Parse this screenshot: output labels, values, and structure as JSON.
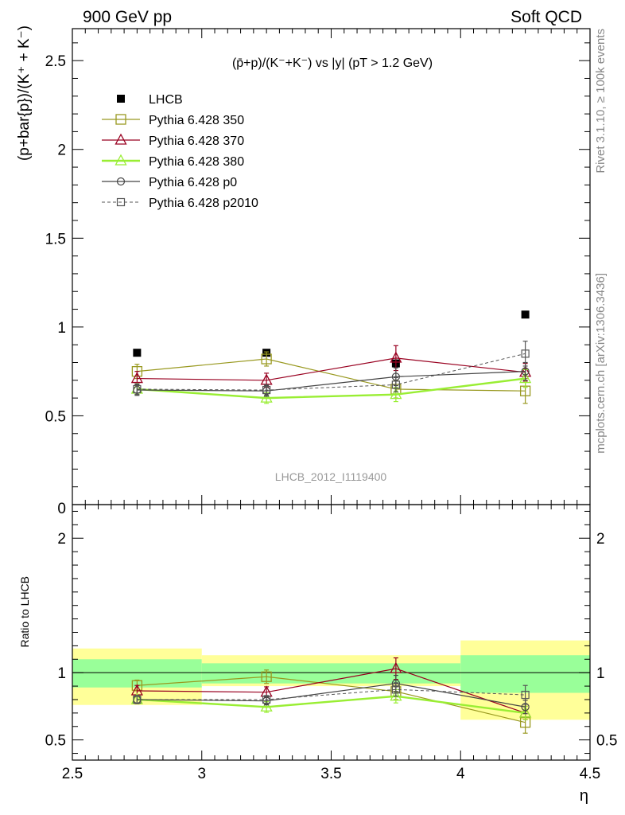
{
  "header": {
    "left": "900 GeV pp",
    "right": "Soft QCD"
  },
  "side_labels": {
    "rivet": "Rivet 3.1.10, ≥ 100k events",
    "source": "mcplots.cern.ch [arXiv:1306.3436]"
  },
  "chart_data": [
    {
      "type": "line",
      "panel": "main",
      "title": "(p̄+p)/(K⁻+K⁻) vs |y| (pT > 1.2 GeV)",
      "ylabel": "(p+bar{p})/(K⁺ + K⁻)",
      "analysis_label": "LHCB_2012_I1119400",
      "xlim": [
        2.5,
        4.5
      ],
      "ylim": [
        0,
        2.68
      ],
      "y_ticks": [
        0.5,
        1,
        1.5,
        2,
        2.5
      ],
      "y_tick_labels": [
        "0.5",
        "1",
        "1.5",
        "2",
        "2.5"
      ],
      "y_tick_partial_label": "0",
      "x": [
        2.75,
        3.25,
        3.75,
        4.25
      ],
      "legend_position": "top-left",
      "series": [
        {
          "name": "LHCB",
          "color": "#000000",
          "marker": "filled-square",
          "line": "none",
          "values": [
            0.855,
            0.855,
            0.795,
            1.07
          ],
          "err": [
            0,
            0,
            0,
            0
          ]
        },
        {
          "name": "Pythia 6.428 350",
          "color": "#999920",
          "marker": "open-square",
          "line": "solid",
          "values": [
            0.75,
            0.82,
            0.65,
            0.64
          ],
          "err": [
            0.04,
            0.04,
            0.05,
            0.07
          ]
        },
        {
          "name": "Pythia 6.428 370",
          "color": "#990020",
          "marker": "open-triangle",
          "line": "solid",
          "values": [
            0.71,
            0.7,
            0.825,
            0.745
          ],
          "err": [
            0.04,
            0.04,
            0.07,
            0.05
          ]
        },
        {
          "name": "Pythia 6.428 380",
          "color": "#99ee33",
          "marker": "open-triangle",
          "line": "solid-thick",
          "values": [
            0.65,
            0.6,
            0.62,
            0.71
          ],
          "err": [
            0.03,
            0.03,
            0.04,
            0.05
          ]
        },
        {
          "name": "Pythia 6.428 p0",
          "color": "#444444",
          "marker": "open-circle",
          "line": "solid",
          "values": [
            0.645,
            0.64,
            0.72,
            0.75
          ],
          "err": [
            0.03,
            0.03,
            0.05,
            0.05
          ]
        },
        {
          "name": "Pythia 6.428 p2010",
          "color": "#555555",
          "marker": "open-square-small",
          "line": "dashed",
          "values": [
            0.65,
            0.645,
            0.675,
            0.85
          ],
          "err": [
            0.03,
            0.03,
            0.04,
            0.07
          ]
        }
      ]
    },
    {
      "type": "line",
      "panel": "ratio",
      "ylabel": "Ratio to LHCB",
      "xlabel": "η",
      "xlim": [
        2.5,
        4.5
      ],
      "ylim": [
        0.35,
        2.25
      ],
      "x_ticks": [
        2.5,
        3,
        3.5,
        4,
        4.5
      ],
      "x_tick_labels": [
        "2.5",
        "3",
        "3.5",
        "4",
        "4.5"
      ],
      "y_ticks": [
        0.5,
        1,
        2
      ],
      "y_tick_labels": [
        "0.5",
        "1",
        "2"
      ],
      "reference_line": 1,
      "x": [
        2.75,
        3.25,
        3.75,
        4.25
      ],
      "bands": [
        {
          "x0": 2.5,
          "x1": 3.0,
          "y1_lo": 0.89,
          "y1_hi": 1.1,
          "y2_lo": 0.76,
          "y2_hi": 1.18
        },
        {
          "x0": 3.0,
          "x1": 4.0,
          "y1_lo": 0.92,
          "y1_hi": 1.07,
          "y2_lo": 0.9,
          "y2_hi": 1.13
        },
        {
          "x0": 4.0,
          "x1": 4.5,
          "y1_lo": 0.85,
          "y1_hi": 1.13,
          "y2_lo": 0.65,
          "y2_hi": 1.24
        }
      ],
      "series": [
        {
          "name": "Pythia 6.428 350",
          "values": [
            0.905,
            0.97,
            0.86,
            0.63
          ],
          "err": [
            0.04,
            0.05,
            0.06,
            0.08
          ]
        },
        {
          "name": "Pythia 6.428 370",
          "values": [
            0.865,
            0.855,
            1.03,
            0.7
          ],
          "err": [
            0.04,
            0.04,
            0.08,
            0.05
          ]
        },
        {
          "name": "Pythia 6.428 380",
          "values": [
            0.8,
            0.745,
            0.825,
            0.7
          ],
          "err": [
            0.03,
            0.04,
            0.05,
            0.05
          ]
        },
        {
          "name": "Pythia 6.428 p0",
          "values": [
            0.8,
            0.79,
            0.92,
            0.745
          ],
          "err": [
            0.03,
            0.03,
            0.06,
            0.05
          ]
        },
        {
          "name": "Pythia 6.428 p2010",
          "values": [
            0.8,
            0.8,
            0.875,
            0.835
          ],
          "err": [
            0.03,
            0.03,
            0.05,
            0.07
          ]
        }
      ]
    }
  ]
}
